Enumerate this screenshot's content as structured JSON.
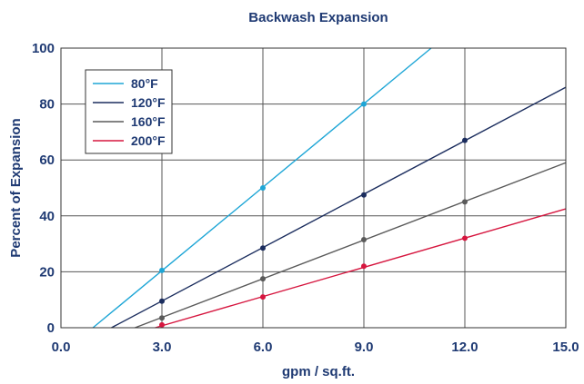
{
  "chart_data": {
    "type": "line",
    "title": "Backwash Expansion",
    "xlabel": "gpm / sq.ft.",
    "ylabel": "Percent of Expansion",
    "xlim": [
      0,
      15
    ],
    "ylim": [
      0,
      100
    ],
    "x_ticks": [
      "0.0",
      "3.0",
      "6.0",
      "9.0",
      "12.0",
      "15.0"
    ],
    "y_ticks": [
      "0",
      "20",
      "40",
      "60",
      "80",
      "100"
    ],
    "grid": true,
    "legend_position": "top-left",
    "series": [
      {
        "name": "80°F",
        "color": "#1ea6d6",
        "line": [
          [
            0.95,
            0
          ],
          [
            11.0,
            100
          ]
        ],
        "markers": [
          [
            3.0,
            20.5
          ],
          [
            6.0,
            50.0
          ],
          [
            9.0,
            80.0
          ]
        ]
      },
      {
        "name": "120°F",
        "color": "#1b2d5e",
        "line": [
          [
            1.5,
            0
          ],
          [
            15.0,
            86.0
          ]
        ],
        "markers": [
          [
            3.0,
            9.5
          ],
          [
            6.0,
            28.5
          ],
          [
            9.0,
            47.5
          ],
          [
            12.0,
            67.0
          ]
        ]
      },
      {
        "name": "160°F",
        "color": "#5a5a5a",
        "line": [
          [
            2.2,
            0
          ],
          [
            15.0,
            59.0
          ]
        ],
        "markers": [
          [
            3.0,
            3.5
          ],
          [
            6.0,
            17.5
          ],
          [
            9.0,
            31.5
          ],
          [
            12.0,
            45.0
          ]
        ]
      },
      {
        "name": "200°F",
        "color": "#d6163f",
        "line": [
          [
            2.8,
            0
          ],
          [
            15.0,
            42.5
          ]
        ],
        "markers": [
          [
            3.0,
            1.0
          ],
          [
            6.0,
            11.0
          ],
          [
            9.0,
            22.0
          ],
          [
            12.0,
            32.0
          ]
        ]
      }
    ]
  }
}
